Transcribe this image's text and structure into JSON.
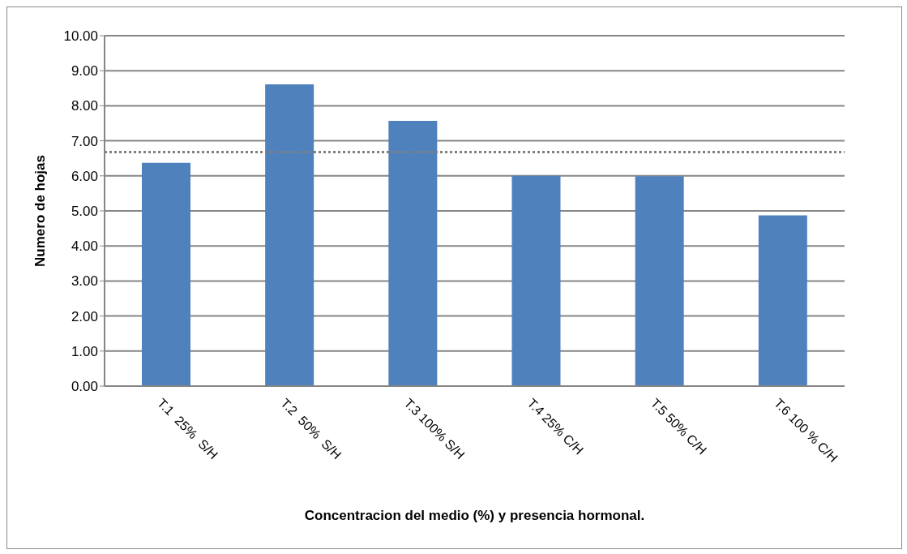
{
  "chart_data": {
    "type": "bar",
    "xlabel": "Concentracion del medio (%) y presencia hormonal.",
    "ylabel": "Numero de hojas",
    "categories": [
      "T.1  25%  S/H",
      "T.2  50%  S/H",
      "T.3 100% S/H",
      "T.4 25% C/H",
      "T.5 50% C/H",
      "T.6 100 % C/H"
    ],
    "values": [
      6.37,
      8.61,
      7.57,
      6.0,
      5.99,
      4.87
    ],
    "color": "#4f81bd",
    "ylim": [
      0,
      10
    ],
    "yticks": [
      {
        "value": 0,
        "label": "0.00"
      },
      {
        "value": 1,
        "label": "1.00"
      },
      {
        "value": 2,
        "label": "2.00"
      },
      {
        "value": 3,
        "label": "3.00"
      },
      {
        "value": 4,
        "label": "4.00"
      },
      {
        "value": 5,
        "label": "5.00"
      },
      {
        "value": 6,
        "label": "6.00"
      },
      {
        "value": 7,
        "label": "7.00"
      },
      {
        "value": 8,
        "label": "8.00"
      },
      {
        "value": 9,
        "label": "9.00"
      },
      {
        "value": 10,
        "label": "10.00"
      }
    ],
    "ref_lines": [
      {
        "axis": "y",
        "value": 6.68,
        "color": "#808080",
        "line_style": "dotted"
      }
    ],
    "grid": "y"
  }
}
